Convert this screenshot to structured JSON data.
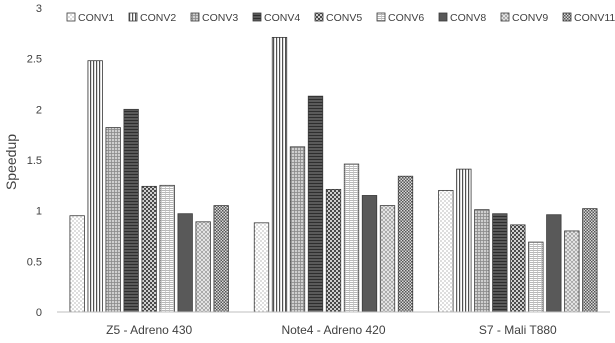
{
  "chart_data": {
    "type": "bar",
    "ylabel": "Speedup",
    "xlabel": "",
    "ylim": [
      0,
      3
    ],
    "yticks": [
      0,
      0.5,
      1,
      1.5,
      2,
      2.5,
      3
    ],
    "ytick_labels": [
      "0",
      "0.5",
      "1",
      "1.5",
      "2",
      "2.5",
      "3"
    ],
    "grid": false,
    "legend_position": "top",
    "categories": [
      "Z5 - Adreno 430",
      "Note4 - Adreno 420",
      "S7 - Mali T880"
    ],
    "series": [
      {
        "name": "CONV1",
        "values": [
          0.95,
          0.88,
          1.2
        ],
        "pattern": "dots"
      },
      {
        "name": "CONV2",
        "values": [
          2.48,
          2.71,
          1.41
        ],
        "pattern": "vlines"
      },
      {
        "name": "CONV3",
        "values": [
          1.82,
          1.63,
          1.01
        ],
        "pattern": "grid"
      },
      {
        "name": "CONV4",
        "values": [
          2.0,
          2.13,
          0.97
        ],
        "pattern": "hlines-dark"
      },
      {
        "name": "CONV5",
        "values": [
          1.24,
          1.21,
          0.86
        ],
        "pattern": "checker"
      },
      {
        "name": "CONV6",
        "values": [
          1.25,
          1.46,
          0.69
        ],
        "pattern": "crosshatch-light"
      },
      {
        "name": "CONV8",
        "values": [
          0.97,
          1.15,
          0.96
        ],
        "pattern": "solid-dark"
      },
      {
        "name": "CONV9",
        "values": [
          0.89,
          1.05,
          0.8
        ],
        "pattern": "diamond"
      },
      {
        "name": "CONV11",
        "values": [
          1.05,
          1.34,
          1.02
        ],
        "pattern": "checker-fine"
      }
    ]
  }
}
